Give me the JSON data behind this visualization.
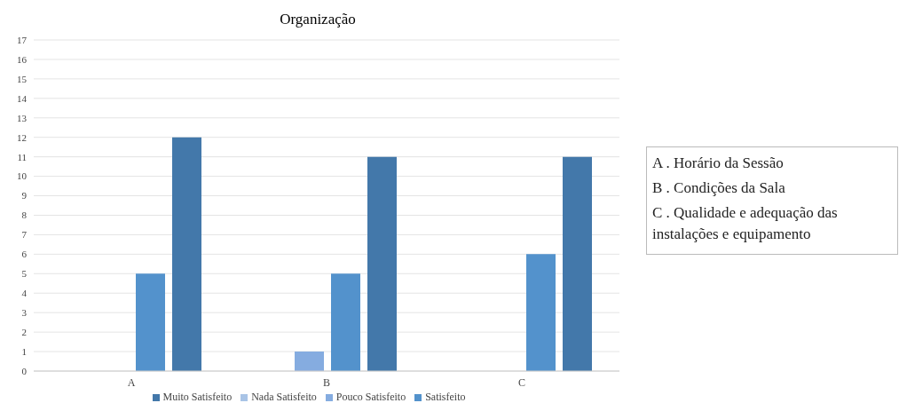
{
  "chart_data": {
    "type": "bar",
    "title": "Organização",
    "categories": [
      "A",
      "B",
      "C"
    ],
    "series": [
      {
        "name": "Nada Satisfeito",
        "color": "#a9c4e6",
        "values": [
          0,
          0,
          0
        ]
      },
      {
        "name": "Pouco Satisfeito",
        "color": "#85ace0",
        "values": [
          0,
          1,
          0
        ]
      },
      {
        "name": "Satisfeito",
        "color": "#5392cc",
        "values": [
          5,
          5,
          6
        ]
      },
      {
        "name": "Muito Satisfeito",
        "color": "#4378aa",
        "values": [
          12,
          11,
          11
        ]
      }
    ],
    "ylim": [
      0,
      17
    ],
    "yticks": [
      0,
      1,
      2,
      3,
      4,
      5,
      6,
      7,
      8,
      9,
      10,
      11,
      12,
      13,
      14,
      15,
      16,
      17
    ],
    "grid": "y",
    "legend": "bottom",
    "annotations": [
      "A . Horário da Sessão",
      "B . Condições da Sala",
      "C . Qualidade e adequação das instalações e equipamento"
    ]
  }
}
